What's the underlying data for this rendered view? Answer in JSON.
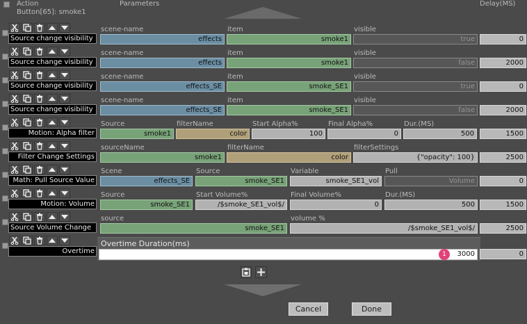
{
  "header": {
    "action": "Action",
    "button_info": "Button[65]: smoke1",
    "parameters": "Parameters",
    "delay": "Delay(MS)"
  },
  "rows": [
    {
      "action": "Source change visibility",
      "labels": [
        "scene-name",
        "item",
        "visible"
      ],
      "values": [
        "effects",
        "smoke1",
        "true"
      ],
      "delay": "0"
    },
    {
      "action": "Source change visibility",
      "labels": [
        "scene-name",
        "item",
        "visible"
      ],
      "values": [
        "effects",
        "smoke1",
        "false"
      ],
      "delay": "2000"
    },
    {
      "action": "Source change visibility",
      "labels": [
        "scene-name",
        "item",
        "visible"
      ],
      "values": [
        "effects_SE",
        "smoke_SE1",
        "true"
      ],
      "delay": "0"
    },
    {
      "action": "Source change visibility",
      "labels": [
        "scene-name",
        "item",
        "visible"
      ],
      "values": [
        "effects_SE",
        "smoke_SE1",
        "false"
      ],
      "delay": "2000"
    },
    {
      "action": "Motion: Alpha filter",
      "labels": [
        "Source",
        "filterName",
        "Start Alpha%",
        "Final Alpha%",
        "Dur.(MS)"
      ],
      "values": [
        "smoke1",
        "color",
        "100",
        "0",
        "500"
      ],
      "delay": "1500"
    },
    {
      "action": "Filter Change Settings",
      "labels": [
        "sourceName",
        "filterName",
        "filterSettings"
      ],
      "values": [
        "smoke1",
        "color",
        "{\"opacity\": 100}"
      ],
      "delay": "2500"
    },
    {
      "action": "Math: Pull Source Value",
      "labels": [
        "Scene",
        "Source",
        "Variable",
        "Pull"
      ],
      "values": [
        "effects_SE",
        "smoke_SE1",
        "smoke_SE1_vol",
        "Volume"
      ],
      "delay": "0"
    },
    {
      "action": "Motion: Volume",
      "labels": [
        "Source",
        "Start Volume%",
        "Final Volume%",
        "Dur.(MS)"
      ],
      "values": [
        "smoke_SE1",
        "/$smoke_SE1_vol$/",
        "0",
        "500"
      ],
      "delay": "1500"
    },
    {
      "action": "Source Volume Change",
      "labels": [
        "source",
        "volume %"
      ],
      "values": [
        "smoke_SE1",
        "/$smoke_SE1_vol$/"
      ],
      "delay": "2500"
    },
    {
      "action": "Overtime",
      "labels": [
        "Overtime Duration(ms)"
      ],
      "values": [
        "3000"
      ],
      "delay": "0"
    }
  ],
  "overtime_badge": "1",
  "footer": {
    "cancel": "Cancel",
    "done": "Done"
  },
  "colors": {
    "scene": "#6b8ea3",
    "source": "#78a278",
    "filter": "#b0a07a",
    "value": "#b2b2b2",
    "badge": "#e2427a"
  }
}
